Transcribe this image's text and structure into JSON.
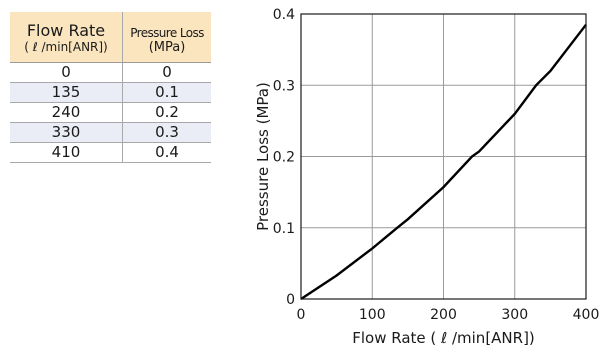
{
  "table": {
    "headers": {
      "col1_line1": "Flow Rate",
      "col1_line2": "( ℓ /min[ANR])",
      "col2_line1": "Pressure Loss",
      "col2_line2": "(MPa)"
    },
    "rows": [
      {
        "flow": "0",
        "loss": "0"
      },
      {
        "flow": "135",
        "loss": "0.1"
      },
      {
        "flow": "240",
        "loss": "0.2"
      },
      {
        "flow": "330",
        "loss": "0.3"
      },
      {
        "flow": "410",
        "loss": "0.4"
      }
    ]
  },
  "chart_data": {
    "type": "line",
    "xlabel": "Flow Rate ( ℓ /min[ANR])",
    "ylabel": "Pressure Loss (MPa)",
    "xlim": [
      0,
      400
    ],
    "ylim": [
      0,
      0.4
    ],
    "xticks": [
      "0",
      "100",
      "200",
      "300",
      "400"
    ],
    "yticks": [
      "0",
      "0.1",
      "0.2",
      "0.3",
      "0.4"
    ],
    "grid": true,
    "series": [
      {
        "x": [
          0,
          50,
          100,
          135,
          150,
          200,
          240,
          250,
          300,
          330,
          350,
          400
        ],
        "y": [
          0,
          0.033,
          0.071,
          0.1,
          0.112,
          0.157,
          0.2,
          0.207,
          0.26,
          0.3,
          0.32,
          0.385
        ],
        "color": "#000000"
      }
    ]
  }
}
